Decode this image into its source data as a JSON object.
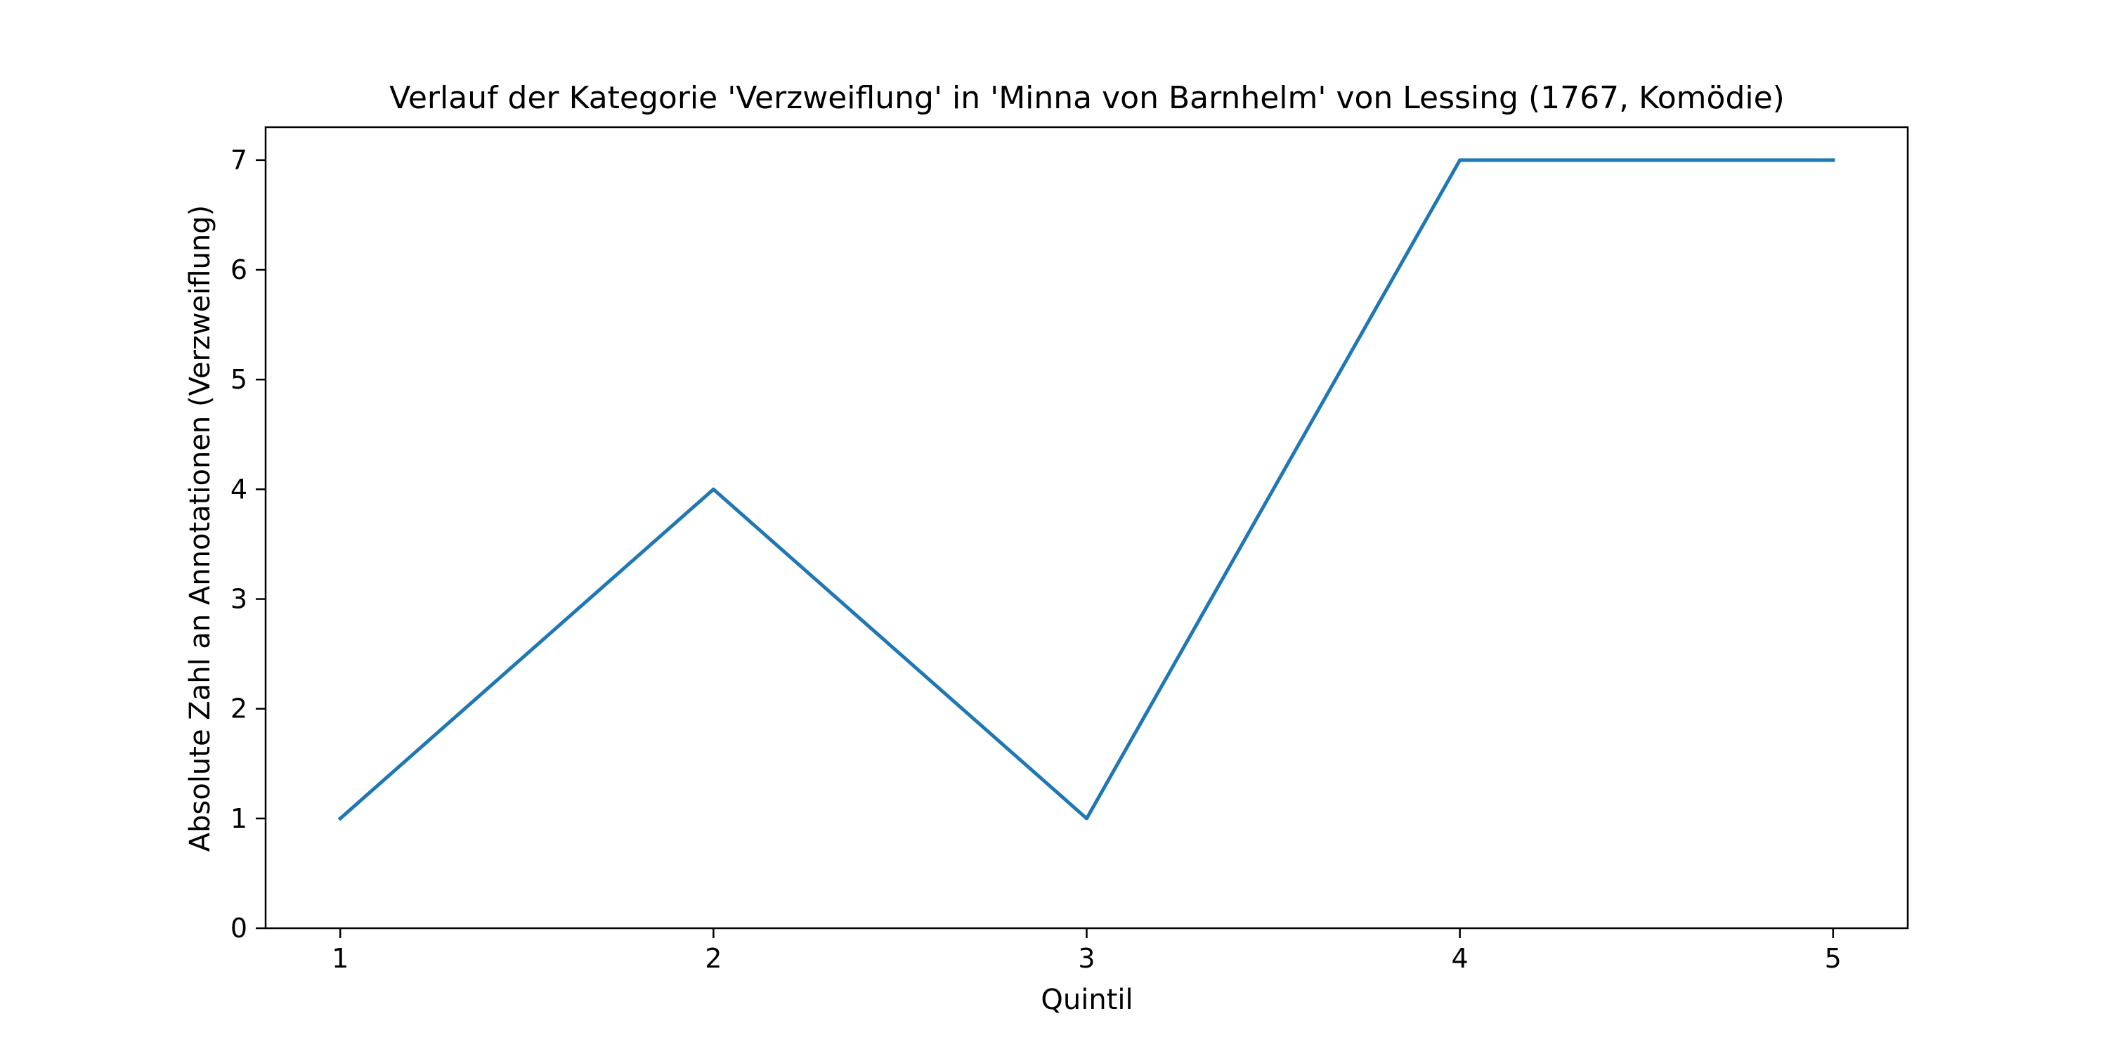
{
  "chart_data": {
    "type": "line",
    "title": "Verlauf der Kategorie 'Verzweiflung' in 'Minna von Barnhelm' von Lessing (1767, Komödie)",
    "xlabel": "Quintil",
    "ylabel": "Absolute Zahl an Annotationen (Verzweiflung)",
    "x": [
      1,
      2,
      3,
      4,
      5
    ],
    "series": [
      {
        "values": [
          1,
          4,
          1,
          7,
          7
        ],
        "color": "#1f77b4"
      }
    ],
    "xlim": [
      0.8,
      5.2
    ],
    "ylim": [
      0,
      7.3
    ],
    "xticks": [
      "1",
      "2",
      "3",
      "4",
      "5"
    ],
    "yticks": [
      "0",
      "1",
      "2",
      "3",
      "4",
      "5",
      "6",
      "7"
    ],
    "grid": false,
    "legend": false
  }
}
